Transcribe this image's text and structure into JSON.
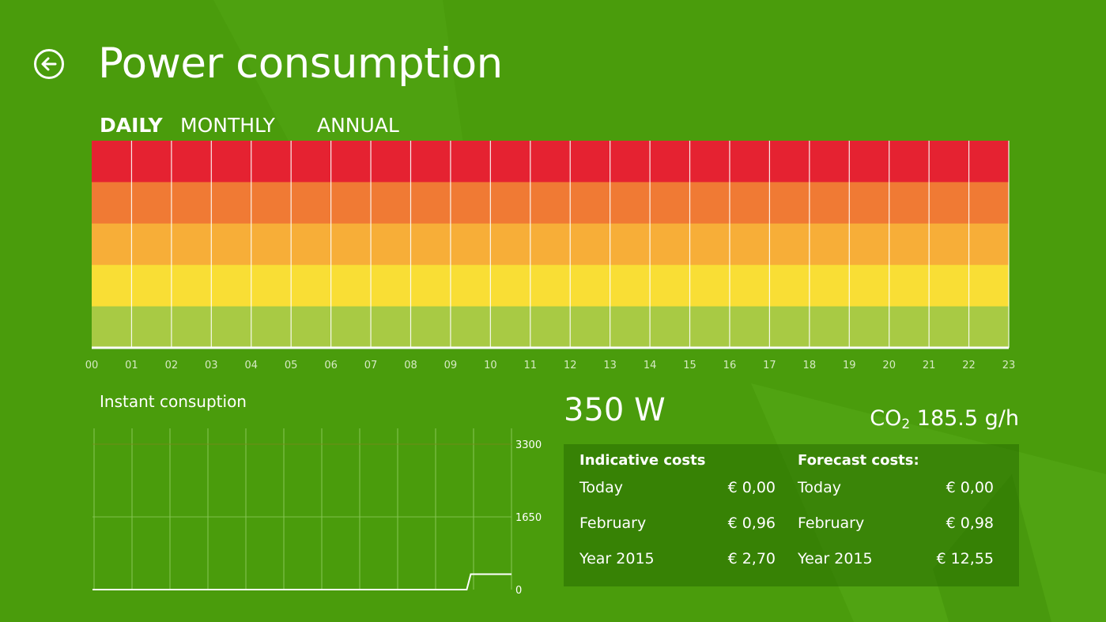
{
  "header": {
    "title": "Power consumption",
    "back_label": "Back"
  },
  "tabs": [
    {
      "label": "DAILY",
      "active": true
    },
    {
      "label": "MONTHLY",
      "active": false
    },
    {
      "label": "ANNUAL",
      "active": false
    }
  ],
  "colors": {
    "background": "#4a9c0c",
    "bands": [
      "#e52231",
      "#f07a34",
      "#f7ae38",
      "#f9de35",
      "#a8ca44"
    ]
  },
  "daily_chart": {
    "hours": [
      "00",
      "01",
      "02",
      "03",
      "04",
      "05",
      "06",
      "07",
      "08",
      "09",
      "10",
      "11",
      "12",
      "13",
      "14",
      "15",
      "16",
      "17",
      "18",
      "19",
      "20",
      "21",
      "22",
      "23"
    ]
  },
  "instant": {
    "title": "Instant consuption",
    "chart_data": {
      "type": "line",
      "ylim": [
        0,
        3300
      ],
      "ticks": [
        "3300",
        "1650",
        "0"
      ],
      "tick_values": [
        3300,
        1650,
        0
      ],
      "values": [
        0,
        0,
        0,
        0,
        0,
        0,
        0,
        0,
        0,
        0,
        0,
        0,
        0,
        0,
        0,
        0,
        0,
        0,
        0,
        0,
        0,
        0,
        0,
        0,
        0,
        0,
        0,
        0,
        0,
        0,
        0,
        0,
        0,
        0,
        0,
        0,
        0,
        0,
        0,
        0,
        0,
        0,
        0,
        0,
        0,
        0,
        0,
        0,
        0,
        0,
        0,
        0,
        0,
        0,
        0,
        0,
        0,
        0,
        0,
        0,
        0,
        0,
        0,
        0,
        0,
        0,
        0,
        0,
        0,
        0,
        0,
        0,
        0,
        0,
        0,
        0,
        0,
        0,
        0,
        0,
        0,
        0,
        0,
        0,
        0,
        0,
        0,
        0,
        0,
        0,
        0,
        0,
        0,
        350,
        350,
        350,
        350,
        350,
        350,
        350,
        350,
        350,
        350,
        350
      ]
    }
  },
  "power": {
    "value": "350 W",
    "co2_prefix": "CO",
    "co2_sub": "2",
    "co2_value": " 185.5 g/h"
  },
  "costs": {
    "indicative": {
      "title": "Indicative costs",
      "rows": [
        {
          "label": "Today",
          "value": "€ 0,00"
        },
        {
          "label": "February",
          "value": "€ 0,96"
        },
        {
          "label": "Year 2015",
          "value": "€ 2,70"
        }
      ]
    },
    "forecast": {
      "title": "Forecast costs:",
      "rows": [
        {
          "label": "Today",
          "value": "€ 0,00"
        },
        {
          "label": "February",
          "value": "€ 0,98"
        },
        {
          "label": "Year 2015",
          "value": "€ 12,55"
        }
      ]
    }
  }
}
